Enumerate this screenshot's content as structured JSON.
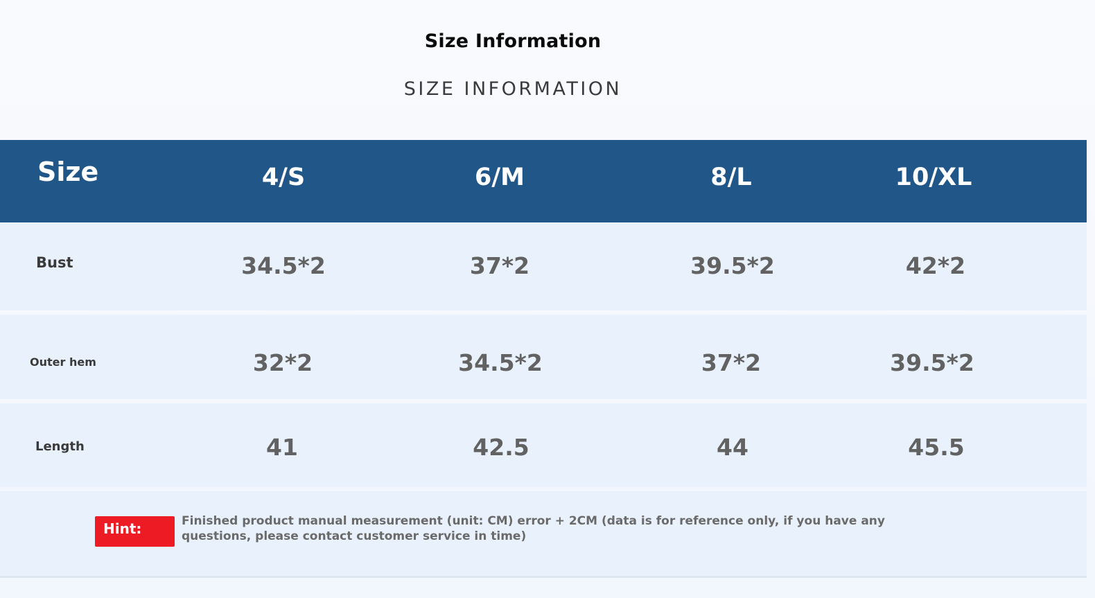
{
  "title": "Size Information",
  "subtitle": "SIZE INFORMATION",
  "table": {
    "header": {
      "label": "Size",
      "sizes": [
        "4/S",
        "6/M",
        "8/L",
        "10/XL"
      ]
    },
    "rows": [
      {
        "label": "Bust",
        "values": [
          "34.5*2",
          "37*2",
          "39.5*2",
          "42*2"
        ]
      },
      {
        "label": "Outer hem",
        "values": [
          "32*2",
          "34.5*2",
          "37*2",
          "39.5*2"
        ]
      },
      {
        "label": "Length",
        "values": [
          "41",
          "42.5",
          "44",
          "45.5"
        ]
      }
    ]
  },
  "hint": {
    "label": "Hint:",
    "text": "Finished product manual measurement (unit: CM) error + 2CM (data is for reference only, if you have any questions, please contact customer service in time)"
  },
  "colors": {
    "header_bg": "#215688",
    "row_bg": "#e9f2fc",
    "hint_badge": "#ed1c24"
  }
}
